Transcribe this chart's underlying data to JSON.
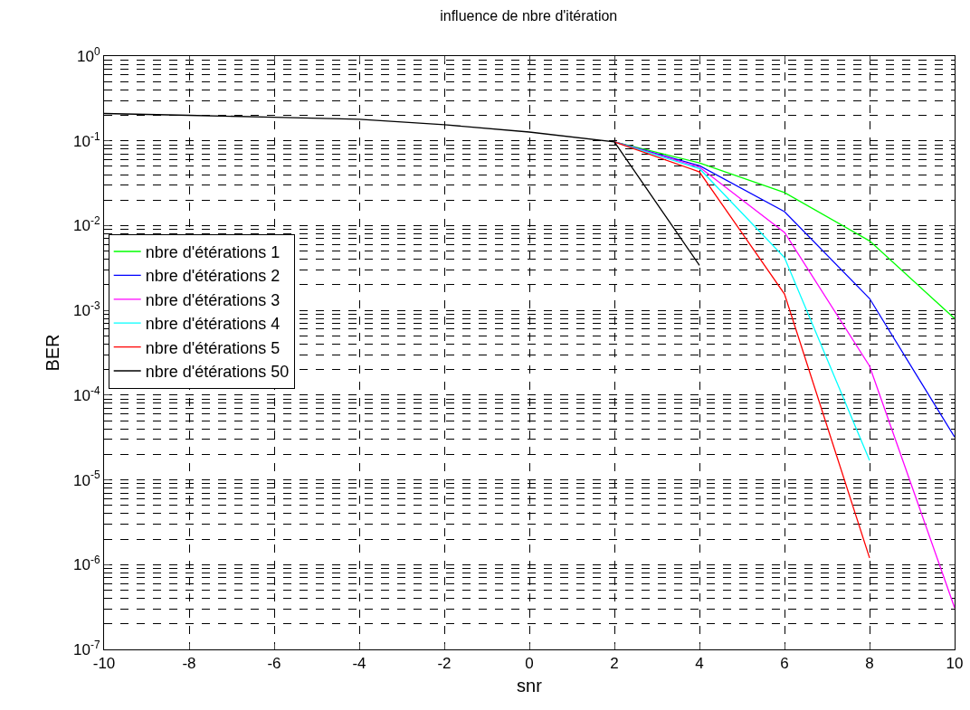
{
  "chart_data": {
    "type": "line",
    "title": "influence de nbre d'itération",
    "xlabel": "snr",
    "ylabel": "BER",
    "x": [
      -10,
      -8,
      -6,
      -4,
      -2,
      0,
      2,
      4,
      6,
      8,
      10
    ],
    "series": [
      {
        "name": "nbre d'étérations 1",
        "color": "#00ff00",
        "values": [
          null,
          null,
          null,
          null,
          null,
          null,
          0.097,
          0.055,
          0.0245,
          0.0066,
          0.0008
        ]
      },
      {
        "name": "nbre d'étérations 2",
        "color": "#0000ff",
        "values": [
          null,
          null,
          null,
          null,
          null,
          null,
          0.097,
          0.051,
          0.0146,
          0.00138,
          3.2e-05
        ]
      },
      {
        "name": "nbre d'étérations 3",
        "color": "#ff00ff",
        "values": [
          null,
          null,
          null,
          null,
          null,
          null,
          0.097,
          0.049,
          0.0083,
          0.00022,
          3.1e-07
        ]
      },
      {
        "name": "nbre d'étérations 4",
        "color": "#00ffff",
        "values": [
          null,
          null,
          null,
          null,
          null,
          null,
          0.097,
          0.047,
          0.0042,
          1.7e-05,
          null
        ]
      },
      {
        "name": "nbre d'étérations 5",
        "color": "#ff0000",
        "values": [
          null,
          null,
          null,
          null,
          null,
          null,
          0.097,
          0.043,
          0.00156,
          1.2e-06,
          null
        ]
      },
      {
        "name": "nbre d'étérations 50",
        "color": "#000000",
        "values": [
          0.21,
          0.2,
          0.19,
          0.18,
          0.155,
          0.127,
          0.097,
          0.0034,
          null,
          null,
          null
        ]
      }
    ],
    "log": "y",
    "xlim": [
      -10,
      10
    ],
    "xticks": [
      -10,
      -8,
      -6,
      -4,
      -2,
      0,
      2,
      4,
      6,
      8,
      10
    ],
    "ylim": [
      1e-07,
      1
    ],
    "yticks": [
      {
        "value": 1e-07,
        "label": "10$^{-7}$"
      },
      {
        "value": 1e-06,
        "label": "10$^{-6}$"
      },
      {
        "value": 1e-05,
        "label": "10$^{-5}$"
      },
      {
        "value": 0.0001,
        "label": "10$^{-4}$"
      },
      {
        "value": 0.001,
        "label": "10$^{-3}$"
      },
      {
        "value": 0.01,
        "label": "10$^{-2}$"
      },
      {
        "value": 0.1,
        "label": "10$^{-1}$"
      },
      {
        "value": 1,
        "label": "10$^{0}$"
      }
    ],
    "grid": true,
    "legend": "top left",
    "line_style": "solid",
    "marker": "none"
  }
}
